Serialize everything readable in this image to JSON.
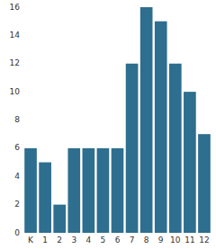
{
  "chart_data": {
    "type": "bar",
    "categories": [
      "K",
      "1",
      "2",
      "3",
      "4",
      "5",
      "6",
      "7",
      "8",
      "9",
      "10",
      "11",
      "12"
    ],
    "values": [
      6,
      5,
      2,
      6,
      6,
      6,
      6,
      12,
      16,
      15,
      12,
      10,
      7
    ],
    "color": "#2e6e8e",
    "ylim": [
      0,
      16
    ],
    "yticks": [
      0,
      2,
      4,
      6,
      8,
      10,
      12,
      14,
      16
    ],
    "grid": false
  }
}
